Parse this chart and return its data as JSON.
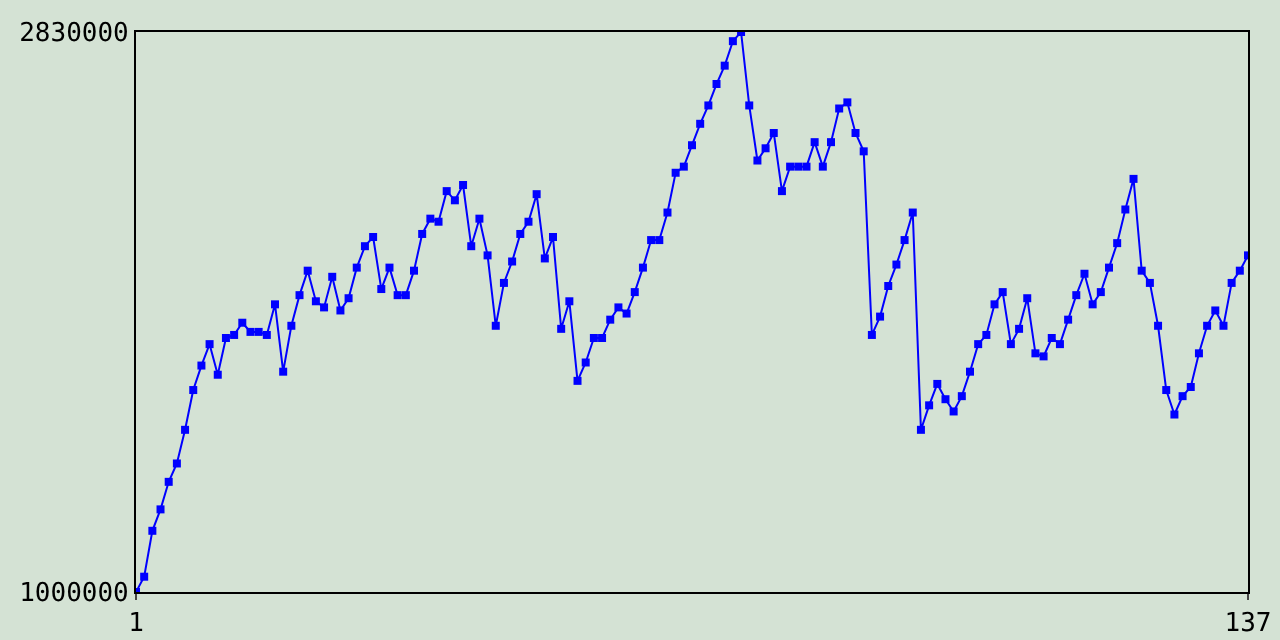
{
  "chart_data": {
    "type": "line",
    "x": [
      1,
      2,
      3,
      4,
      5,
      6,
      7,
      8,
      9,
      10,
      11,
      12,
      13,
      14,
      15,
      16,
      17,
      18,
      19,
      20,
      21,
      22,
      23,
      24,
      25,
      26,
      27,
      28,
      29,
      30,
      31,
      32,
      33,
      34,
      35,
      36,
      37,
      38,
      39,
      40,
      41,
      42,
      43,
      44,
      45,
      46,
      47,
      48,
      49,
      50,
      51,
      52,
      53,
      54,
      55,
      56,
      57,
      58,
      59,
      60,
      61,
      62,
      63,
      64,
      65,
      66,
      67,
      68,
      69,
      70,
      71,
      72,
      73,
      74,
      75,
      76,
      77,
      78,
      79,
      80,
      81,
      82,
      83,
      84,
      85,
      86,
      87,
      88,
      89,
      90,
      91,
      92,
      93,
      94,
      95,
      96,
      97,
      98,
      99,
      100,
      101,
      102,
      103,
      104,
      105,
      106,
      107,
      108,
      109,
      110,
      111,
      112,
      113,
      114,
      115,
      116,
      117,
      118,
      119,
      120,
      121,
      122,
      123,
      124,
      125,
      126,
      127,
      128,
      129,
      130,
      131,
      132,
      133,
      134,
      135,
      136,
      137
    ],
    "series": [
      {
        "color": "#0000ff",
        "values": [
          1000000,
          1050000,
          1200000,
          1270000,
          1360000,
          1420000,
          1530000,
          1660000,
          1740000,
          1810000,
          1710000,
          1830000,
          1840000,
          1880000,
          1850000,
          1850000,
          1840000,
          1940000,
          1720000,
          1870000,
          1970000,
          2050000,
          1950000,
          1930000,
          2030000,
          1920000,
          1960000,
          2060000,
          2130000,
          2160000,
          1990000,
          2060000,
          1970000,
          1970000,
          2050000,
          2170000,
          2220000,
          2210000,
          2310000,
          2280000,
          2330000,
          2130000,
          2220000,
          2100000,
          1870000,
          2010000,
          2080000,
          2170000,
          2210000,
          2300000,
          2090000,
          2160000,
          1860000,
          1950000,
          1690000,
          1750000,
          1830000,
          1830000,
          1890000,
          1930000,
          1910000,
          1980000,
          2060000,
          2150000,
          2150000,
          2240000,
          2370000,
          2390000,
          2460000,
          2530000,
          2590000,
          2660000,
          2720000,
          2800000,
          2830000,
          2590000,
          2410000,
          2450000,
          2500000,
          2310000,
          2390000,
          2390000,
          2390000,
          2470000,
          2390000,
          2470000,
          2580000,
          2600000,
          2500000,
          2440000,
          1840000,
          1900000,
          2000000,
          2070000,
          2150000,
          2240000,
          1530000,
          1610000,
          1680000,
          1630000,
          1590000,
          1640000,
          1720000,
          1810000,
          1840000,
          1940000,
          1980000,
          1810000,
          1860000,
          1960000,
          1780000,
          1770000,
          1830000,
          1810000,
          1890000,
          1970000,
          2040000,
          1940000,
          1980000,
          2060000,
          2140000,
          2250000,
          2350000,
          2050000,
          2010000,
          1870000,
          1660000,
          1580000,
          1640000,
          1670000,
          1780000,
          1870000,
          1920000,
          1870000,
          2010000,
          2050000,
          2100000
        ]
      }
    ],
    "xlim": [
      1,
      137
    ],
    "xticks": [
      1,
      137
    ],
    "ylim": [
      1000000,
      2830000
    ],
    "yticks": [
      1000000,
      2830000
    ],
    "marker": "square",
    "line_style": "solid"
  }
}
